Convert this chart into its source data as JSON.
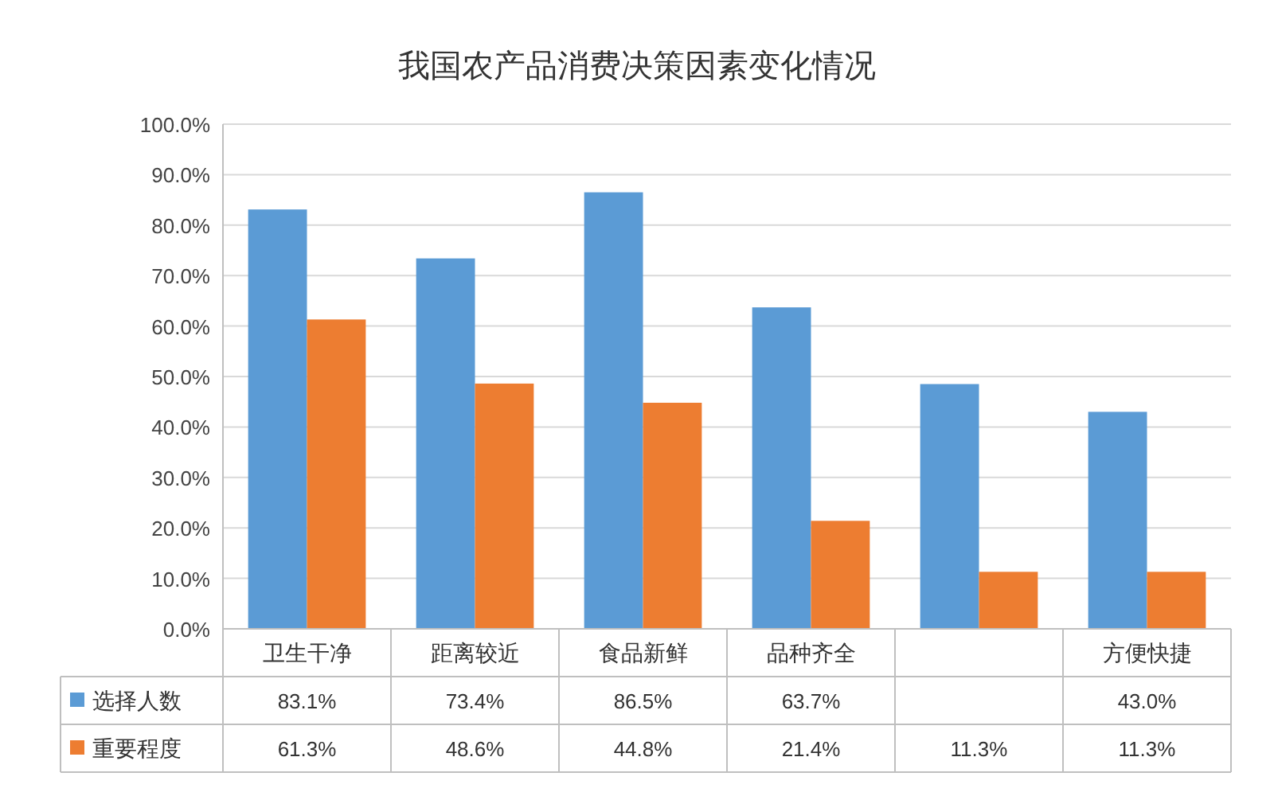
{
  "chart_data": {
    "type": "bar",
    "title": "我国农产品消费决策因素变化情况",
    "categories": [
      "卫生干净",
      "距离较近",
      "食品新鲜",
      "品种齐全",
      null,
      "方便快捷"
    ],
    "series": [
      {
        "name": "选择人数",
        "color": "#5b9bd5",
        "values": [
          83.1,
          73.4,
          86.5,
          63.7,
          48.5,
          43.0
        ],
        "value_labels": [
          "83.1%",
          "73.4%",
          "86.5%",
          "63.7%",
          null,
          "43.0%"
        ]
      },
      {
        "name": "重要程度",
        "color": "#ed7d31",
        "values": [
          61.3,
          48.6,
          44.8,
          21.4,
          11.3,
          11.3
        ],
        "value_labels": [
          "61.3%",
          "48.6%",
          "44.8%",
          "21.4%",
          "11.3%",
          "11.3%"
        ]
      }
    ],
    "ylim": [
      0,
      100
    ],
    "yticks": [
      {
        "value": 0,
        "label": "0.0%"
      },
      {
        "value": 10,
        "label": "10.0%"
      },
      {
        "value": 20,
        "label": "20.0%"
      },
      {
        "value": 30,
        "label": "30.0%"
      },
      {
        "value": 40,
        "label": "40.0%"
      },
      {
        "value": 50,
        "label": "50.0%"
      },
      {
        "value": 60,
        "label": "60.0%"
      },
      {
        "value": 70,
        "label": "70.0%"
      },
      {
        "value": 80,
        "label": "80.0%"
      },
      {
        "value": 90,
        "label": "90.0%"
      },
      {
        "value": 100,
        "label": "100.0%"
      }
    ],
    "grid": "y",
    "legend": "bottom"
  }
}
